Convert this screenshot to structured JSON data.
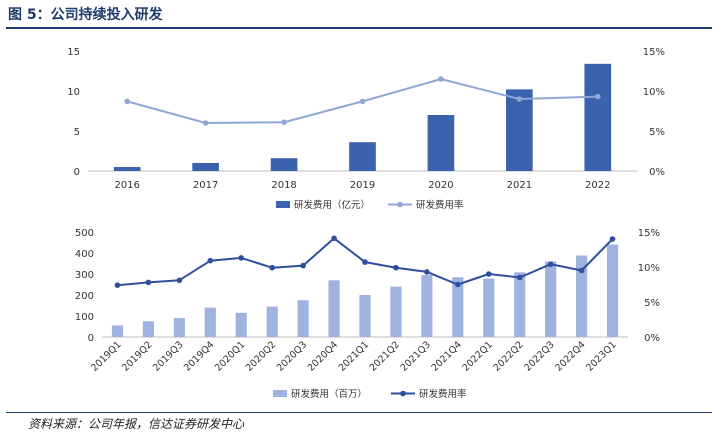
{
  "figure": {
    "title": "图 5：公司持续投入研发",
    "source": "资料来源：公司年报，信达证券研发中心"
  },
  "chart_data": [
    {
      "type": "bar",
      "categories": [
        "2016",
        "2017",
        "2018",
        "2019",
        "2020",
        "2021",
        "2022"
      ],
      "series": [
        {
          "name": "研发费用（亿元）",
          "type": "bar",
          "axis": "left",
          "color": "#3b62ad",
          "values": [
            0.5,
            1.0,
            1.6,
            3.6,
            7.0,
            10.2,
            13.4
          ]
        },
        {
          "name": "研发费用率",
          "type": "line",
          "axis": "right",
          "color": "#8fa6d6",
          "values": [
            8.7,
            6.0,
            6.1,
            8.7,
            11.5,
            9.0,
            9.3
          ]
        }
      ],
      "y_left": {
        "min": 0,
        "max": 15,
        "ticks": [
          0,
          5,
          10,
          15
        ],
        "tick_labels": [
          "0",
          "5",
          "10",
          "15"
        ]
      },
      "y_right": {
        "min": 0,
        "max": 15,
        "ticks": [
          0,
          5,
          10,
          15
        ],
        "tick_labels": [
          "0%",
          "5%",
          "10%",
          "15%"
        ]
      },
      "legend_position": "bottom-center",
      "grid": false
    },
    {
      "type": "bar",
      "categories": [
        "2019Q1",
        "2019Q2",
        "2019Q3",
        "2019Q4",
        "2020Q1",
        "2020Q2",
        "2020Q3",
        "2020Q4",
        "2021Q1",
        "2021Q2",
        "2021Q3",
        "2021Q4",
        "2022Q1",
        "2022Q2",
        "2022Q3",
        "2022Q4",
        "2023Q1"
      ],
      "series": [
        {
          "name": "研发费用（百万）",
          "type": "bar",
          "axis": "left",
          "color": "#9fb2e0",
          "values": [
            55,
            75,
            90,
            140,
            115,
            145,
            175,
            270,
            200,
            240,
            295,
            285,
            278,
            308,
            360,
            388,
            440
          ]
        },
        {
          "name": "研发费用率",
          "type": "line",
          "axis": "right",
          "color": "#2e4f9e",
          "values": [
            7.4,
            7.8,
            8.1,
            10.9,
            11.3,
            9.9,
            10.2,
            14.1,
            10.7,
            9.9,
            9.3,
            7.5,
            9.0,
            8.5,
            10.4,
            9.5,
            14.0
          ]
        }
      ],
      "y_left": {
        "min": 0,
        "max": 500,
        "ticks": [
          0,
          100,
          200,
          300,
          400,
          500
        ],
        "tick_labels": [
          "0",
          "100",
          "200",
          "300",
          "400",
          "500"
        ]
      },
      "y_right": {
        "min": 0,
        "max": 15,
        "ticks": [
          0,
          5,
          10,
          15
        ],
        "tick_labels": [
          "0%",
          "5%",
          "10%",
          "15%"
        ]
      },
      "legend_position": "bottom-center",
      "grid": false
    }
  ]
}
